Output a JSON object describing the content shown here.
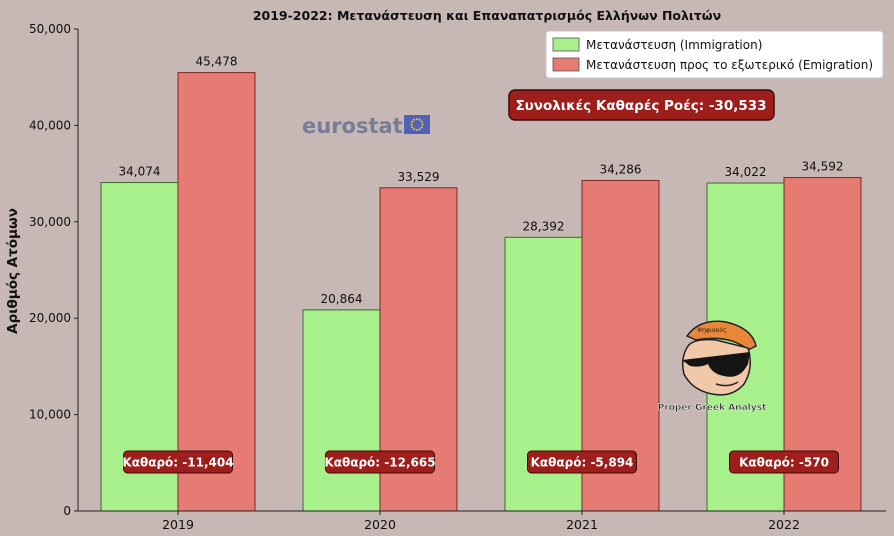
{
  "chart_data": {
    "type": "bar",
    "title": "2019-2022: Μετανάστευση και Επαναπατρισμός Ελλήνων Πολιτών",
    "xlabel": "",
    "ylabel": "Αριθμός Ατόμων",
    "categories": [
      "2019",
      "2020",
      "2021",
      "2022"
    ],
    "series": [
      {
        "name": "Μετανάστευση (Immigration)",
        "values": [
          34074,
          20864,
          28392,
          34022
        ],
        "color": "#a8f08c"
      },
      {
        "name": "Μετανάστευση προς το εξωτερικό (Emigration)",
        "values": [
          45478,
          33529,
          34286,
          34592
        ],
        "color": "#e57b72"
      }
    ],
    "value_labels": [
      [
        "34,074",
        "20,864",
        "28,392",
        "34,022"
      ],
      [
        "45,478",
        "33,529",
        "34,286",
        "34,592"
      ]
    ],
    "net_labels": [
      "Καθαρό: -11,404",
      "Καθαρό: -12,665",
      "Καθαρό: -5,894",
      "Καθαρό: -570"
    ],
    "net_values": [
      -11404,
      -12665,
      -5894,
      -570
    ],
    "total_label": "Συνολικές Καθαρές Ροές: -30,533",
    "total_net": -30533,
    "ylim": [
      0,
      50000
    ],
    "yticks": [
      0,
      10000,
      20000,
      30000,
      40000,
      50000
    ],
    "ytick_labels": [
      "0",
      "10,000",
      "20,000",
      "30,000",
      "40,000",
      "50,000"
    ],
    "legend_position": "top-right",
    "grid": false
  },
  "watermark": {
    "brand": "eurostat",
    "analyst_badge": "Proper Greek Analyst",
    "badge_cap_text": "Ψηφιακός"
  },
  "colors": {
    "background": "#c7b8b5",
    "net_box": "#9e1e1b",
    "immigration": "#a8f08c",
    "emigration": "#e57b72"
  }
}
